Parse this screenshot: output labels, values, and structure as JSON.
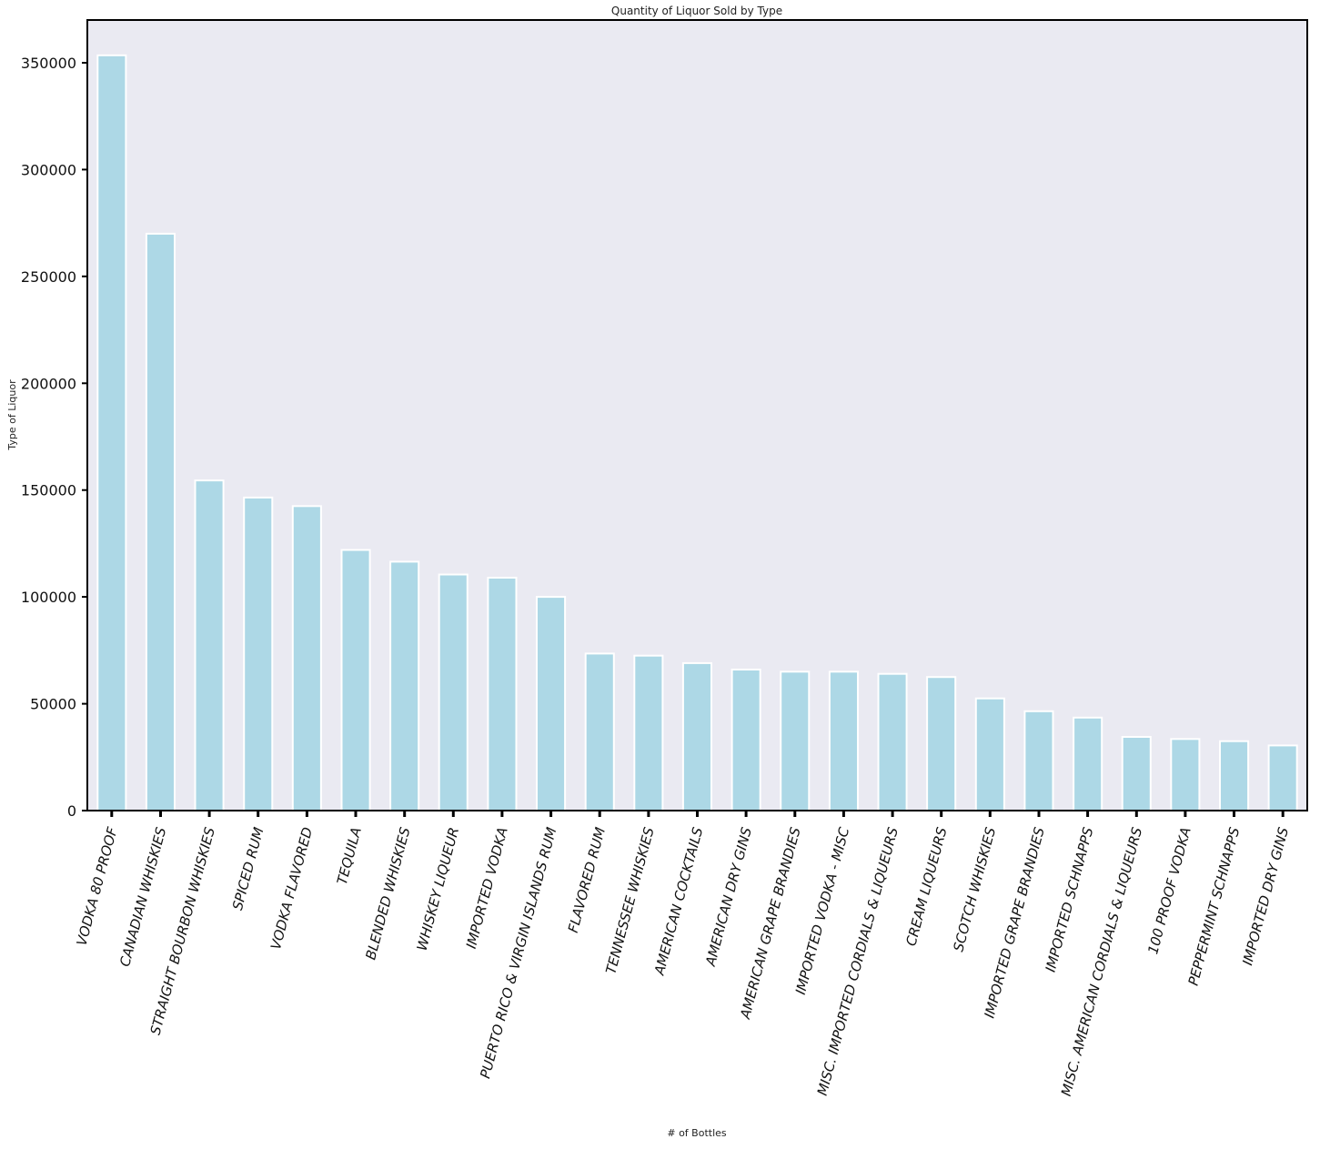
{
  "chart_data": {
    "type": "bar",
    "title": "Quantity of Liquor Sold by Type",
    "xlabel": "# of Bottles",
    "ylabel": "Type of Liquor",
    "ylim": [
      0,
      370000
    ],
    "yticks": [
      0,
      50000,
      100000,
      150000,
      200000,
      250000,
      300000,
      350000
    ],
    "ytick_labels": [
      "0",
      "50000",
      "100000",
      "150000",
      "200000",
      "250000",
      "300000",
      "350000"
    ],
    "grid": false,
    "legend": "none",
    "colors": {
      "bar": "#add8e6",
      "bar_edge": "#ffffff",
      "plot_bg": "#eaeaf2",
      "axes": "#000000"
    },
    "categories": [
      "VODKA 80 PROOF",
      "CANADIAN WHISKIES",
      "STRAIGHT BOURBON WHISKIES",
      "SPICED RUM",
      "VODKA FLAVORED",
      "TEQUILA",
      "BLENDED WHISKIES",
      "WHISKEY LIQUEUR",
      "IMPORTED VODKA",
      "PUERTO RICO & VIRGIN ISLANDS RUM",
      "FLAVORED RUM",
      "TENNESSEE WHISKIES",
      "AMERICAN COCKTAILS",
      "AMERICAN DRY GINS",
      "AMERICAN GRAPE BRANDIES",
      "IMPORTED VODKA - MISC",
      "MISC. IMPORTED CORDIALS & LIQUEURS",
      "CREAM LIQUEURS",
      "SCOTCH WHISKIES",
      "IMPORTED GRAPE BRANDIES",
      "IMPORTED SCHNAPPS",
      "MISC. AMERICAN CORDIALS & LIQUEURS",
      "100 PROOF VODKA",
      "PEPPERMINT SCHNAPPS",
      "IMPORTED DRY GINS"
    ],
    "values": [
      353500,
      270000,
      154500,
      146500,
      142500,
      122000,
      116500,
      110500,
      109000,
      100000,
      73500,
      72500,
      69000,
      66000,
      65000,
      65000,
      64000,
      62500,
      52500,
      46500,
      43500,
      34500,
      33500,
      32500,
      30500
    ]
  }
}
